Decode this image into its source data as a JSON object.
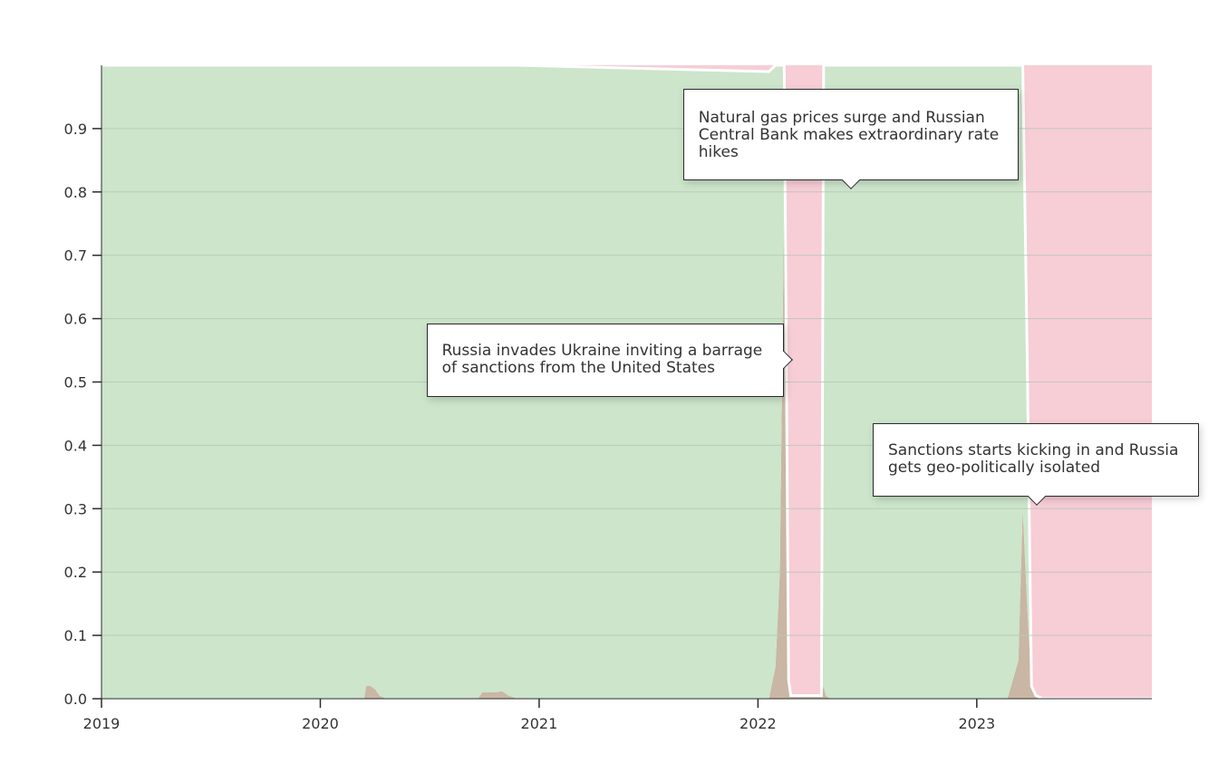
{
  "chart_data": {
    "type": "area",
    "stacked": true,
    "normalized": true,
    "title": "",
    "xlabel": "",
    "ylabel": "",
    "xlim": [
      2019.0,
      2023.8
    ],
    "ylim": [
      0,
      1
    ],
    "y_ticks": [
      "0.0",
      "0.1",
      "0.2",
      "0.3",
      "0.4",
      "0.5",
      "0.6",
      "0.7",
      "0.8",
      "0.9"
    ],
    "x_ticks": [
      "2019",
      "2020",
      "2021",
      "2022",
      "2023"
    ],
    "grid": true,
    "series_colors": {
      "green": "#cce5cb",
      "brown": "#c9b6a4",
      "pink": "#f7cdd6"
    },
    "x": [
      2019.0,
      2020.2,
      2020.21,
      2020.23,
      2020.25,
      2020.27,
      2020.3,
      2020.72,
      2020.74,
      2020.8,
      2020.83,
      2020.86,
      2020.9,
      2022.05,
      2022.08,
      2022.1,
      2022.12,
      2022.14,
      2022.15,
      2022.29,
      2022.3,
      2022.31,
      2022.33,
      2023.14,
      2023.19,
      2023.21,
      2023.23,
      2023.25,
      2023.27,
      2023.3,
      2023.8
    ],
    "series": [
      {
        "values": [
          0,
          0,
          0.02,
          0.02,
          0.015,
          0.005,
          0,
          0,
          0.01,
          0.01,
          0.012,
          0.005,
          0,
          0,
          0.05,
          0.2,
          0.8,
          0.03,
          0.005,
          0.005,
          0.02,
          0.005,
          0,
          0,
          0.06,
          0.3,
          0.15,
          0.02,
          0.005,
          0,
          0
        ]
      },
      {
        "values": [
          1,
          1,
          0.98,
          0.98,
          0.985,
          0.995,
          1,
          1,
          0.99,
          0.99,
          0.988,
          0.995,
          1,
          0.99,
          0.95,
          0.8,
          0.2,
          0.0,
          0.0,
          0.0,
          0.98,
          0.995,
          1,
          1,
          0.94,
          0.7,
          0.4,
          0.0,
          0.0,
          0,
          0
        ]
      },
      {
        "values": [
          0,
          0,
          0,
          0,
          0,
          0,
          0,
          0,
          0,
          0,
          0,
          0,
          0,
          0.01,
          0,
          0,
          0,
          0.97,
          0.995,
          0.995,
          0,
          0,
          0,
          0,
          0,
          0,
          0.45,
          0.98,
          0.995,
          1,
          1
        ]
      }
    ],
    "annotations": [
      {
        "text": "Natural gas prices surge and Russian Central Bank makes extraordinary rate hikes",
        "x": 2022.42,
        "y": 0.8,
        "pointer": "down"
      },
      {
        "text": "Russia invades Ukraine inviting a barrage of sanctions from the United States",
        "x": 2022.15,
        "y": 0.535,
        "pointer": "right"
      },
      {
        "text": "Sanctions starts kicking in and Russia gets geo-politically isolated",
        "x": 2023.27,
        "y": 0.3,
        "pointer": "down"
      }
    ]
  }
}
